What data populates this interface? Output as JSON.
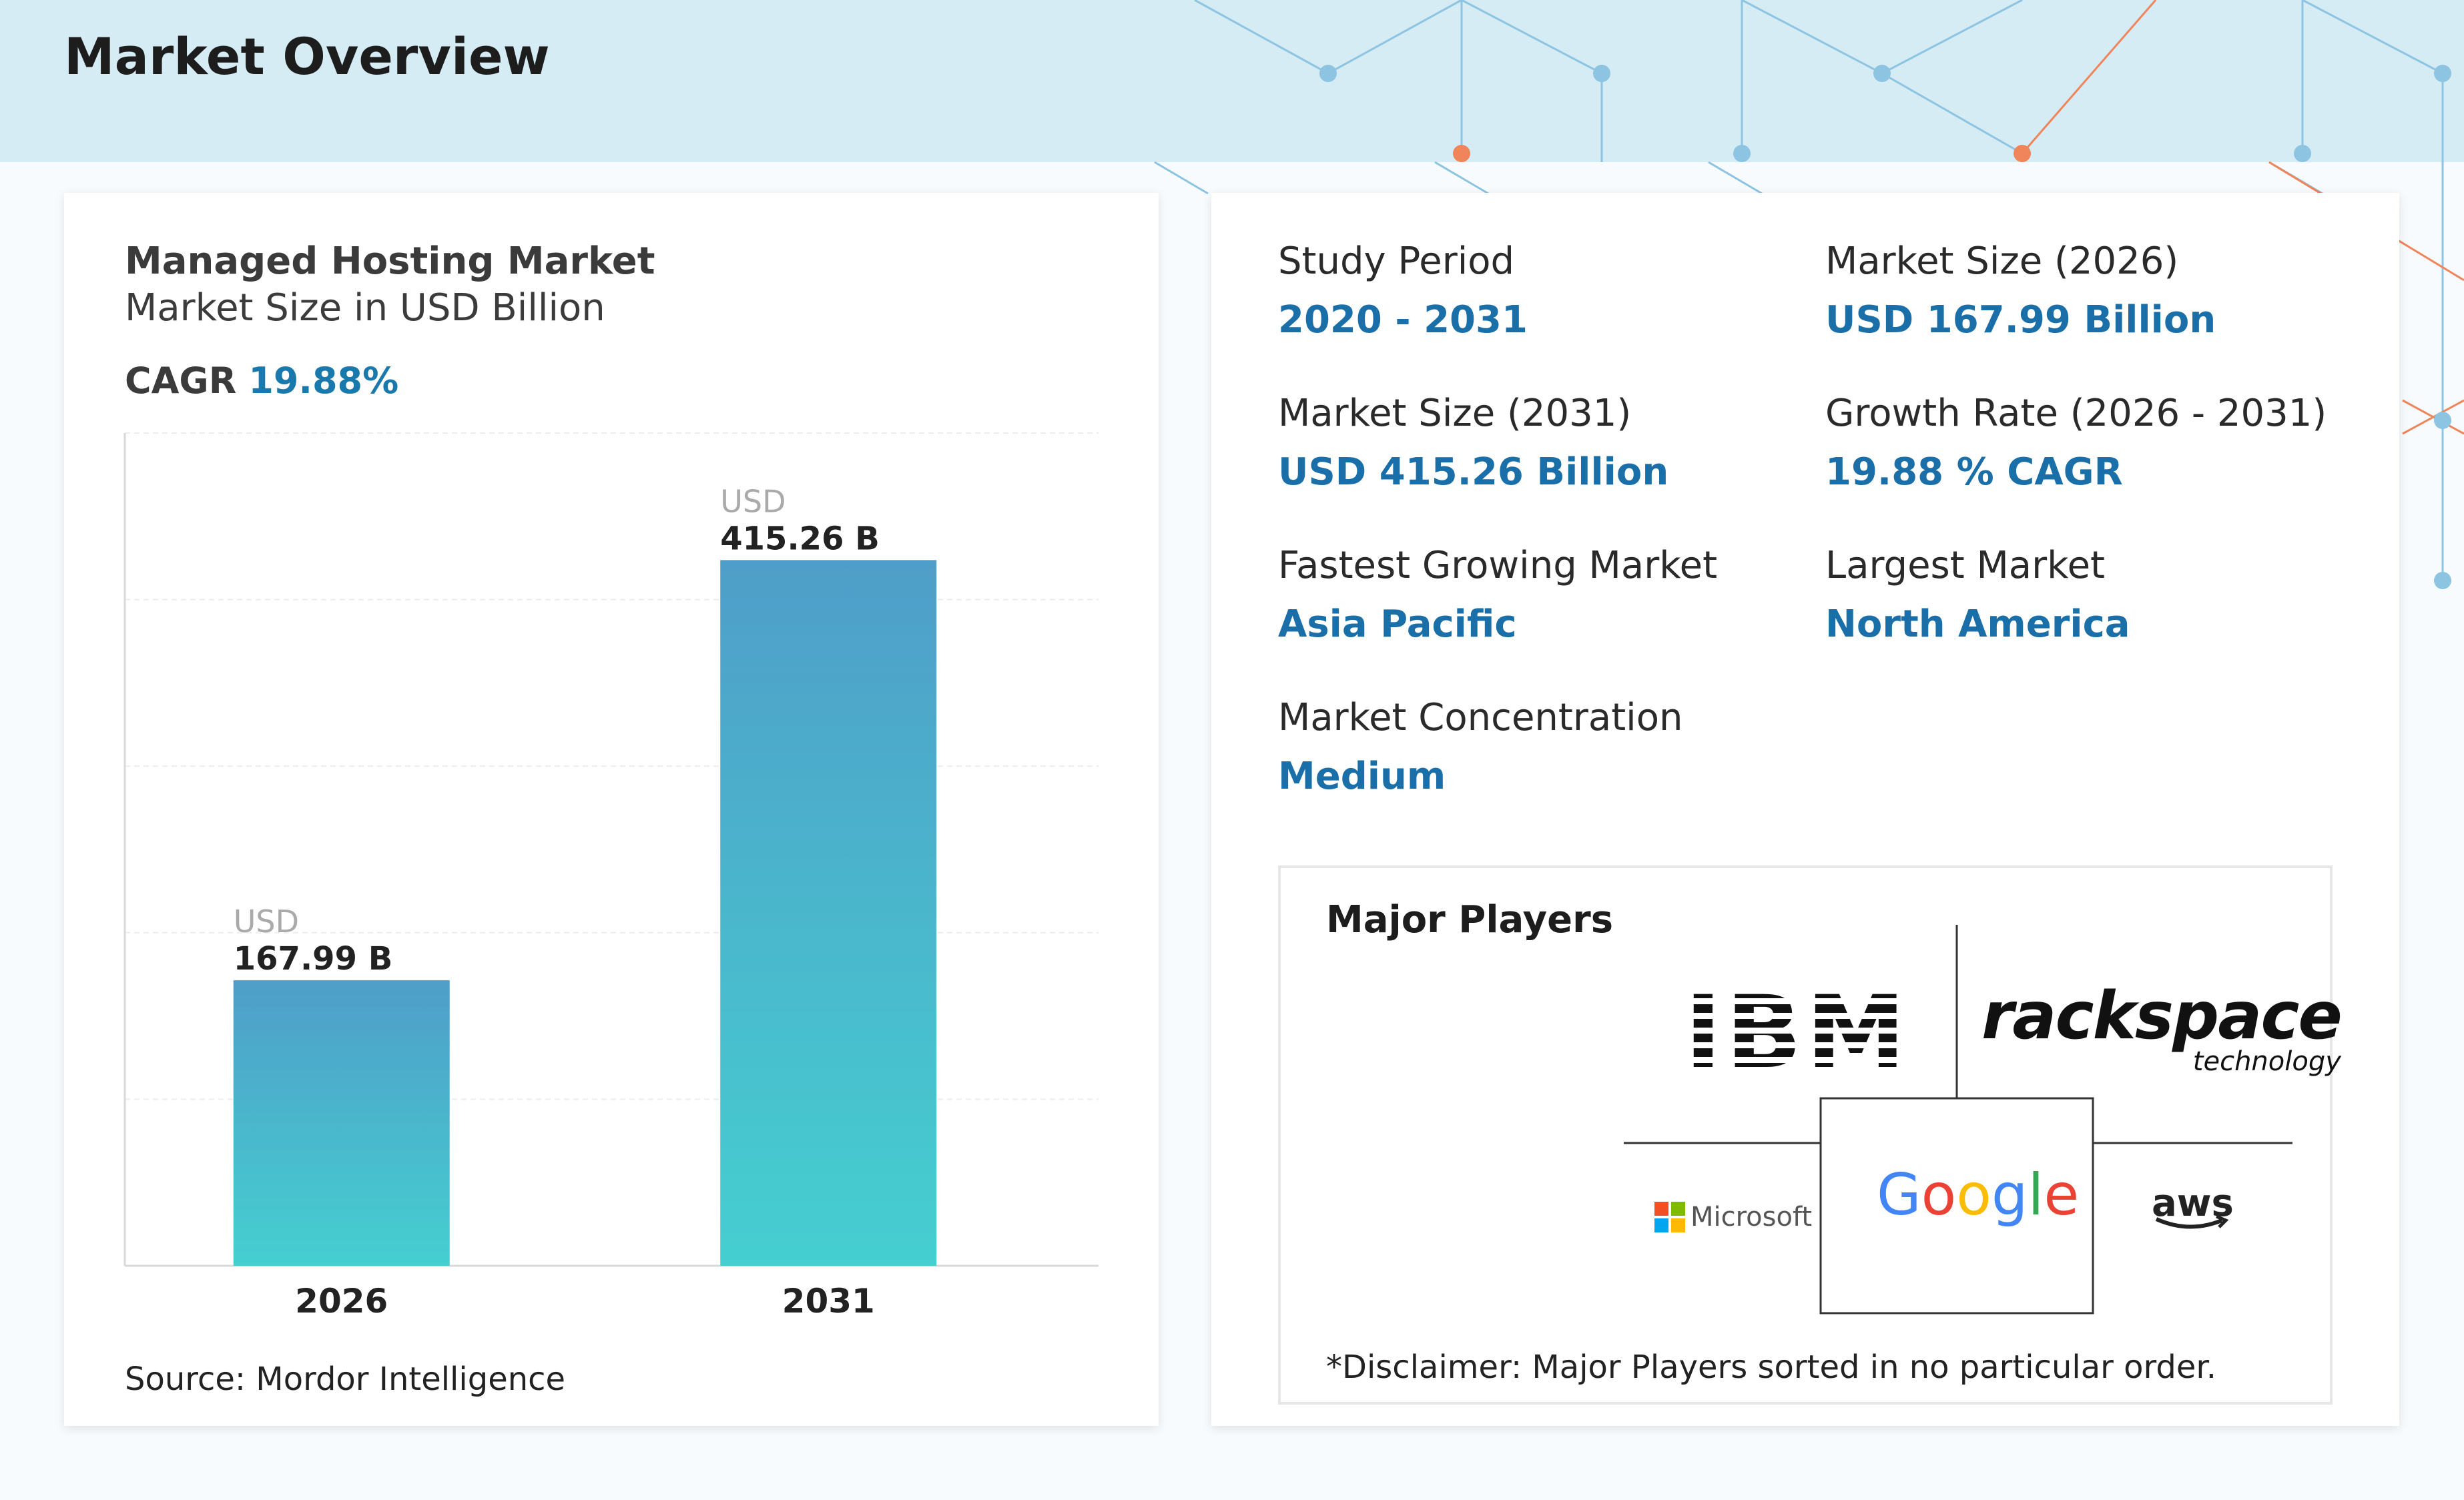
{
  "header": {
    "title": "Market Overview"
  },
  "colors": {
    "accent": "#1a6fa8",
    "bar_top": "#4f9ec9",
    "bar_bottom": "#45cfd0",
    "deco_blue": "#8cc4e2",
    "deco_orange": "#f0845a"
  },
  "left_card": {
    "title": "Managed Hosting Market",
    "subtitle": "Market Size in USD Billion",
    "cagr_label": "CAGR",
    "cagr_value": "19.88%",
    "source": "Source: Mordor Intelligence"
  },
  "chart_data": {
    "type": "bar",
    "categories": [
      "2026",
      "2031"
    ],
    "values": [
      167.99,
      415.26
    ],
    "value_prefix": "USD",
    "value_labels": [
      "167.99 B",
      "415.26 B"
    ],
    "ylim": [
      0,
      490
    ],
    "grid": true
  },
  "stats": {
    "study_period": {
      "label": "Study Period",
      "value": "2020 - 2031"
    },
    "market_size_2026": {
      "label": "Market Size (2026)",
      "value": "USD 167.99 Billion"
    },
    "market_size_2031": {
      "label": "Market Size (2031)",
      "value": "USD 415.26 Billion"
    },
    "growth_rate": {
      "label": "Growth Rate (2026 - 2031)",
      "value": "19.88 % CAGR"
    },
    "fastest_market": {
      "label": "Fastest Growing Market",
      "value": "Asia Pacific"
    },
    "largest_market": {
      "label": "Largest Market",
      "value": "North America"
    },
    "concentration": {
      "label": "Market Concentration",
      "value": "Medium"
    }
  },
  "players": {
    "title": "Major Players",
    "logos": {
      "ibm": "IBM",
      "rackspace_main": "rackspace",
      "rackspace_sub": "technology",
      "microsoft": "Microsoft",
      "google": "Google",
      "aws": "aws"
    },
    "disclaimer": "*Disclaimer: Major Players sorted in no particular order."
  }
}
